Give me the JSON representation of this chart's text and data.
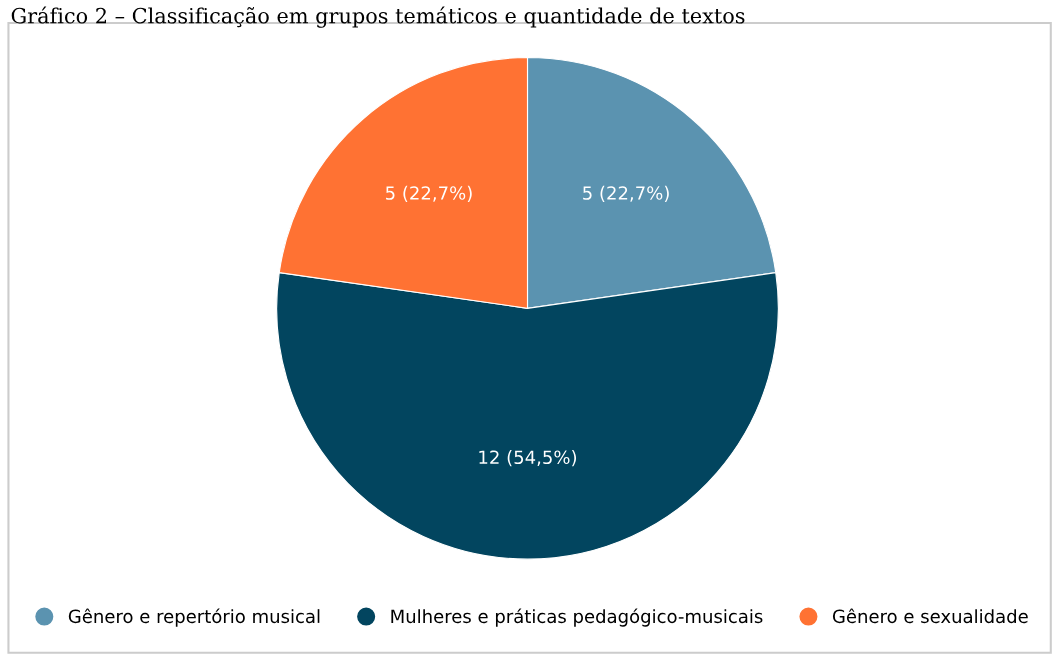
{
  "chart_data": {
    "type": "pie",
    "title": "Gráfico 2 – Classificação em grupos temáticos e quantidade de textos",
    "categories": [
      "Gênero e repertório musical",
      "Mulheres e práticas pedagógico-musicais",
      "Gênero e sexualidade"
    ],
    "values": [
      5,
      12,
      5
    ],
    "colors": [
      "#5b93b0",
      "#02455f",
      "#ff7233"
    ],
    "value_labels": [
      "5 (22,7%)",
      "12 (54,5%)",
      "5 (22,7%)"
    ],
    "legend": "bottom"
  }
}
